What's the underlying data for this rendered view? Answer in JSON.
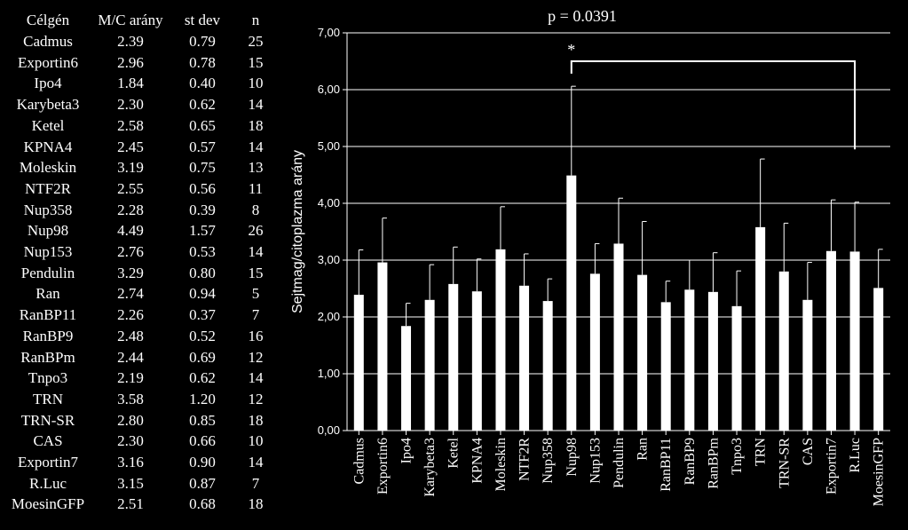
{
  "table": {
    "headers": [
      "Célgén",
      "M/C arány",
      "st dev",
      "n"
    ],
    "rows": [
      [
        "Cadmus",
        "2.39",
        "0.79",
        "25"
      ],
      [
        "Exportin6",
        "2.96",
        "0.78",
        "15"
      ],
      [
        "Ipo4",
        "1.84",
        "0.40",
        "10"
      ],
      [
        "Karybeta3",
        "2.30",
        "0.62",
        "14"
      ],
      [
        "Ketel",
        "2.58",
        "0.65",
        "18"
      ],
      [
        "KPNA4",
        "2.45",
        "0.57",
        "14"
      ],
      [
        "Moleskin",
        "3.19",
        "0.75",
        "13"
      ],
      [
        "NTF2R",
        "2.55",
        "0.56",
        "11"
      ],
      [
        "Nup358",
        "2.28",
        "0.39",
        "8"
      ],
      [
        "Nup98",
        "4.49",
        "1.57",
        "26"
      ],
      [
        "Nup153",
        "2.76",
        "0.53",
        "14"
      ],
      [
        "Pendulin",
        "3.29",
        "0.80",
        "15"
      ],
      [
        "Ran",
        "2.74",
        "0.94",
        "5"
      ],
      [
        "RanBP11",
        "2.26",
        "0.37",
        "7"
      ],
      [
        "RanBP9",
        "2.48",
        "0.52",
        "16"
      ],
      [
        "RanBPm",
        "2.44",
        "0.69",
        "12"
      ],
      [
        "Tnpo3",
        "2.19",
        "0.62",
        "14"
      ],
      [
        "TRN",
        "3.58",
        "1.20",
        "12"
      ],
      [
        "TRN-SR",
        "2.80",
        "0.85",
        "18"
      ],
      [
        "CAS",
        "2.30",
        "0.66",
        "10"
      ],
      [
        "Exportin7",
        "3.16",
        "0.90",
        "14"
      ],
      [
        "R.Luc",
        "3.15",
        "0.87",
        "7"
      ],
      [
        "MoesinGFP",
        "2.51",
        "0.68",
        "18"
      ]
    ]
  },
  "chart_data": {
    "type": "bar",
    "title": "p = 0.0391",
    "ylabel": "Sejtmag/citoplazma  arány",
    "xlabel": "",
    "ylim": [
      0,
      7
    ],
    "yticks": [
      "0,00",
      "1,00",
      "2,00",
      "3,00",
      "4,00",
      "5,00",
      "6,00",
      "7,00"
    ],
    "categories": [
      "Cadmus",
      "Exportin6",
      "Ipo4",
      "Karybeta3",
      "Ketel",
      "KPNA4",
      "Moleskin",
      "NTF2R",
      "Nup358",
      "Nup98",
      "Nup153",
      "Pendulin",
      "Ran",
      "RanBP11",
      "RanBP9",
      "RanBPm",
      "Tnpo3",
      "TRN",
      "TRN-SR",
      "CAS",
      "Exportin7",
      "R.Luc",
      "MoesinGFP"
    ],
    "values": [
      2.39,
      2.96,
      1.84,
      2.3,
      2.58,
      2.45,
      3.19,
      2.55,
      2.28,
      4.49,
      2.76,
      3.29,
      2.74,
      2.26,
      2.48,
      2.44,
      2.19,
      3.58,
      2.8,
      2.3,
      3.16,
      3.15,
      2.51
    ],
    "error": [
      0.79,
      0.78,
      0.4,
      0.62,
      0.65,
      0.57,
      0.75,
      0.56,
      0.39,
      1.57,
      0.53,
      0.8,
      0.94,
      0.37,
      0.52,
      0.69,
      0.62,
      1.2,
      0.85,
      0.66,
      0.9,
      0.87,
      0.68
    ],
    "bar_color": "#ffffff",
    "background": "#000000",
    "grid": true,
    "legend": "none",
    "annotation": {
      "symbol": "*",
      "from_category": "Nup98",
      "to_category": "R.Luc",
      "bracket_y": 6.5,
      "right_drop_to": 4.95
    }
  }
}
